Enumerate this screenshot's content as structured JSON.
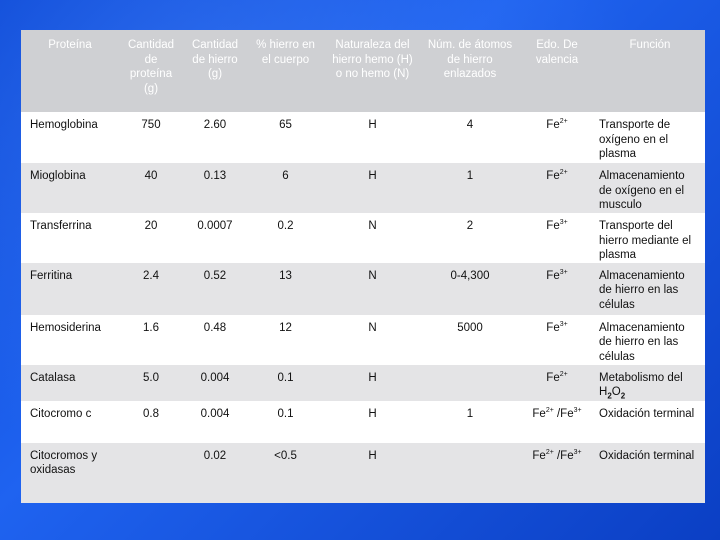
{
  "headers": [
    "Proteína",
    "Cantidad de proteína (g)",
    "Cantidad de hierro (g)",
    "% hierro en el cuerpo",
    "Naturaleza del hierro hemo (H) o no hemo (N)",
    "Núm. de átomos de hierro enlazados",
    "Edo. De valencia",
    "Función"
  ],
  "rows": [
    {
      "protein": "Hemoglobina",
      "protein_g": "750",
      "iron_g": "2.60",
      "iron_pct": "65",
      "nature": "H",
      "atoms": "4",
      "valence_base": "Fe",
      "valence_sup": "2+",
      "function": "Transporte de oxígeno en el plasma"
    },
    {
      "protein": "Mioglobina",
      "protein_g": "40",
      "iron_g": "0.13",
      "iron_pct": "6",
      "nature": "H",
      "atoms": "1",
      "valence_base": "Fe",
      "valence_sup": "2+",
      "function": "Almacenamiento de oxígeno en el musculo"
    },
    {
      "protein": "Transferrina",
      "protein_g": "20",
      "iron_g": "0.0007",
      "iron_pct": "0.2",
      "nature": "N",
      "atoms": "2",
      "valence_base": "Fe",
      "valence_sup": "3+",
      "function": "Transporte del hierro mediante el plasma"
    },
    {
      "protein": "Ferritina",
      "protein_g": "2.4",
      "iron_g": "0.52",
      "iron_pct": "13",
      "nature": "N",
      "atoms": "0-4,300",
      "valence_base": "Fe",
      "valence_sup": "3+",
      "function": "Almacenamiento de hierro en las células"
    },
    {
      "protein": "Hemosiderina",
      "protein_g": "1.6",
      "iron_g": "0.48",
      "iron_pct": "12",
      "nature": "N",
      "atoms": "5000",
      "valence_base": "Fe",
      "valence_sup": "3+",
      "function": "Almacenamiento de hierro en las células"
    },
    {
      "protein": "Catalasa",
      "protein_g": "5.0",
      "iron_g": "0.004",
      "iron_pct": "0.1",
      "nature": "H",
      "atoms": "",
      "valence_base": "Fe",
      "valence_sup": "2+",
      "function_prefix": "Metabolismo del ",
      "formula": {
        "h": "H",
        "n1": "2",
        "o": "O",
        "n2": "2"
      }
    },
    {
      "protein": "Citocromo c",
      "protein_g": "0.8",
      "iron_g": "0.004",
      "iron_pct": "0.1",
      "nature": "H",
      "atoms": "1",
      "valence_base": "Fe",
      "valence_sup": "2+",
      "valence_sep": " /Fe",
      "valence_sup2": "3+",
      "function": "Oxidación terminal"
    },
    {
      "protein": "Citocromos y oxidasas",
      "protein_g": "",
      "iron_g": "0.02",
      "iron_pct": "<0.5",
      "nature": "H",
      "atoms": "",
      "valence_base": "Fe",
      "valence_sup": "2+",
      "valence_sep": " /Fe",
      "valence_sup2": "3+",
      "function": "Oxidación terminal"
    }
  ]
}
